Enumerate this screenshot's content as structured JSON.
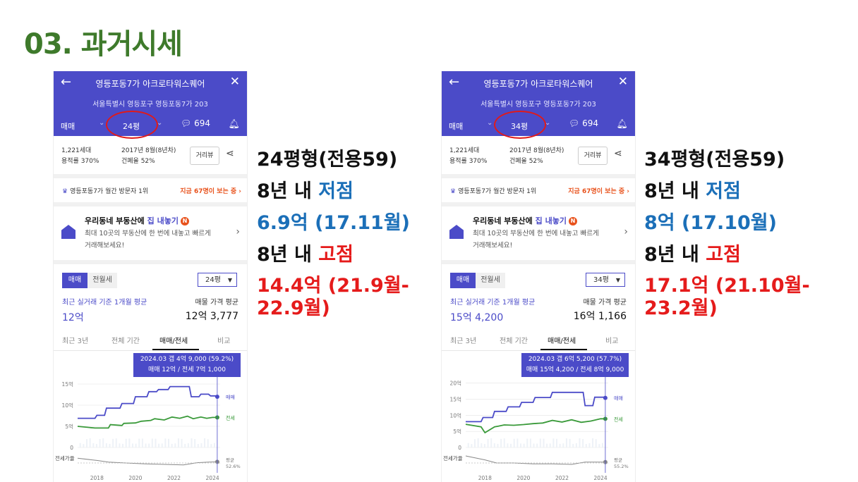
{
  "slide": {
    "title": "03. 과거시세"
  },
  "phones": [
    {
      "title": "영등포동7가 아크로타워스퀘어",
      "address": "서울특별시 영등포구 영등포동7가 203",
      "trade_type": "매매",
      "size_label": "24평",
      "comment_count": "694",
      "households": "1,221세대",
      "floor_ratio": "용적률 370%",
      "built": "2017년 8월(8년차)",
      "coverage": "건폐율 52%",
      "view_button": "거리뷰",
      "rank_text": "영등포동7가 월간 방문자 1위",
      "viewers_text": "지금 67명이 보는 중",
      "promo_title_prefix": "우리동네 부동산에 ",
      "promo_title_highlight": "집 내놓기",
      "promo_badge": "N",
      "promo_desc": "최대 10곳의 부동산에 한 번에 내놓고 빠르게 거래해보세요!",
      "toggle_trade": "매매",
      "toggle_jeonse": "전월세",
      "select_size": "24평",
      "basis_label": "최근 실거래 기준 1개월 평균",
      "basis_value": "12억",
      "avg_label": "매물 가격 평균",
      "avg_value": "12억 3,777",
      "tabs": [
        "최근 3년",
        "전체 기간",
        "매매/전세",
        "비교"
      ],
      "active_tab": 2,
      "tooltip_line1": "2024.03  갭 4억 9,000 (59.2%)",
      "tooltip_line2": "매매 12억 / 전세 7억 1,000"
    },
    {
      "title": "영등포동7가 아크로타워스퀘어",
      "address": "서울특별시 영등포구 영등포동7가 203",
      "trade_type": "매매",
      "size_label": "34평",
      "comment_count": "694",
      "households": "1,221세대",
      "floor_ratio": "용적률 370%",
      "built": "2017년 8월(8년차)",
      "coverage": "건폐율 52%",
      "view_button": "거리뷰",
      "rank_text": "영등포동7가 월간 방문자 1위",
      "viewers_text": "지금 67명이 보는 중",
      "promo_title_prefix": "우리동네 부동산에 ",
      "promo_title_highlight": "집 내놓기",
      "promo_badge": "N",
      "promo_desc": "최대 10곳의 부동산에 한 번에 내놓고 빠르게 거래해보세요!",
      "toggle_trade": "매매",
      "toggle_jeonse": "전월세",
      "select_size": "34평",
      "basis_label": "최근 실거래 기준 1개월 평균",
      "basis_value": "15억 4,200",
      "avg_label": "매물 가격 평균",
      "avg_value": "16억 1,166",
      "tabs": [
        "최근 3년",
        "전체 기간",
        "매매/전세",
        "비교"
      ],
      "active_tab": 2,
      "tooltip_line1": "2024.03  갭 6억 5,200 (57.7%)",
      "tooltip_line2": "매매 15억 4,200 / 전세 8억 9,000"
    }
  ],
  "notes": [
    {
      "size_line": "24평형(전용59)",
      "low_prefix": "8년 내 ",
      "low_word": "저점",
      "low_value": "6.9억 (17.11월)",
      "high_prefix": "8년 내 ",
      "high_word": "고점",
      "high_value_1": "14.4억 (21.9월-",
      "high_value_2": "22.9월)"
    },
    {
      "size_line": "34평형(전용59)",
      "low_prefix": "8년 내 ",
      "low_word": "저점",
      "low_value": "8억 (17.10월)",
      "high_prefix": "8년 내 ",
      "high_word": "고점",
      "high_value_1": "17.1억 (21.10월-",
      "high_value_2": "23.2월)"
    }
  ],
  "chart_data": [
    {
      "type": "line",
      "title": "",
      "y_ticks": [
        "15억",
        "10억",
        "5억",
        "0"
      ],
      "ylim": [
        0,
        16
      ],
      "x_ticks": [
        "2018",
        "2020",
        "2022",
        "2024"
      ],
      "xlim": [
        2017.0,
        2024.4
      ],
      "series_labels": {
        "trade": "매매",
        "jeonse": "전세",
        "gap": "전세가율",
        "avg": "평균",
        "avg_value": "52.6%"
      },
      "colors": {
        "trade": "#4b4bc8",
        "jeonse": "#3a9a3a",
        "gap": "#888888"
      },
      "series": [
        {
          "name": "매매",
          "x": [
            2017.0,
            2017.9,
            2018.0,
            2018.4,
            2018.5,
            2019.2,
            2019.3,
            2019.9,
            2020.0,
            2020.6,
            2020.7,
            2021.1,
            2021.2,
            2021.7,
            2021.8,
            2022.8,
            2022.9,
            2023.3,
            2023.4,
            2023.8,
            2023.9,
            2024.2,
            2024.25
          ],
          "y": [
            6.9,
            6.9,
            7.6,
            7.6,
            9.3,
            9.3,
            10.4,
            10.4,
            12.0,
            12.0,
            13.2,
            13.2,
            13.7,
            13.7,
            14.4,
            14.4,
            12.0,
            12.0,
            12.6,
            12.6,
            12.2,
            12.2,
            12.0
          ]
        },
        {
          "name": "전세",
          "x": [
            2017.0,
            2017.9,
            2018.0,
            2018.6,
            2018.7,
            2019.3,
            2019.4,
            2020.0,
            2020.3,
            2020.8,
            2021.0,
            2021.5,
            2021.9,
            2022.3,
            2022.7,
            2023.0,
            2023.4,
            2023.7,
            2024.0,
            2024.25
          ],
          "y": [
            5.0,
            4.6,
            4.6,
            4.6,
            5.4,
            5.2,
            5.7,
            5.8,
            6.2,
            6.4,
            6.8,
            6.5,
            7.2,
            6.9,
            7.4,
            6.8,
            7.2,
            6.9,
            7.1,
            7.1
          ]
        },
        {
          "name": "전세가율",
          "x": [
            2017.0,
            2018.0,
            2018.6,
            2019.5,
            2020.5,
            2021.5,
            2022.5,
            2023.2,
            2023.8,
            2024.25
          ],
          "y": [
            0.72,
            0.64,
            0.58,
            0.55,
            0.52,
            0.5,
            0.48,
            0.56,
            0.58,
            0.59
          ]
        }
      ]
    },
    {
      "type": "line",
      "title": "",
      "y_ticks": [
        "20억",
        "15억",
        "10억",
        "5억",
        "0"
      ],
      "ylim": [
        0,
        21
      ],
      "x_ticks": [
        "2018",
        "2020",
        "2022",
        "2024"
      ],
      "xlim": [
        2017.0,
        2024.4
      ],
      "series_labels": {
        "trade": "매매",
        "jeonse": "전세",
        "gap": "전세가율",
        "avg": "평균",
        "avg_value": "55.2%"
      },
      "colors": {
        "trade": "#4b4bc8",
        "jeonse": "#3a9a3a",
        "gap": "#888888"
      },
      "series": [
        {
          "name": "매매",
          "x": [
            2017.0,
            2017.8,
            2017.9,
            2018.4,
            2018.5,
            2019.1,
            2019.2,
            2019.8,
            2019.9,
            2020.5,
            2020.6,
            2021.4,
            2021.5,
            2023.1,
            2023.2,
            2023.6,
            2023.7,
            2024.2,
            2024.25
          ],
          "y": [
            8.0,
            8.0,
            9.3,
            9.3,
            11.2,
            11.2,
            12.6,
            12.6,
            14.0,
            14.0,
            15.5,
            15.5,
            17.1,
            17.1,
            13.0,
            13.0,
            15.6,
            15.6,
            15.4
          ]
        },
        {
          "name": "전세",
          "x": [
            2017.0,
            2017.8,
            2018.0,
            2018.5,
            2018.7,
            2019.0,
            2019.5,
            2020.0,
            2020.5,
            2021.0,
            2021.5,
            2022.0,
            2022.5,
            2023.0,
            2023.5,
            2024.0,
            2024.25
          ],
          "y": [
            7.2,
            6.4,
            4.6,
            6.4,
            6.6,
            7.0,
            6.9,
            7.1,
            7.4,
            7.6,
            8.4,
            7.9,
            8.6,
            7.8,
            8.2,
            8.9,
            8.9
          ]
        },
        {
          "name": "전세가율",
          "x": [
            2017.0,
            2018.0,
            2018.6,
            2019.5,
            2020.5,
            2021.5,
            2022.5,
            2023.2,
            2023.8,
            2024.25
          ],
          "y": [
            0.8,
            0.66,
            0.55,
            0.55,
            0.52,
            0.52,
            0.5,
            0.58,
            0.58,
            0.58
          ]
        }
      ]
    }
  ]
}
